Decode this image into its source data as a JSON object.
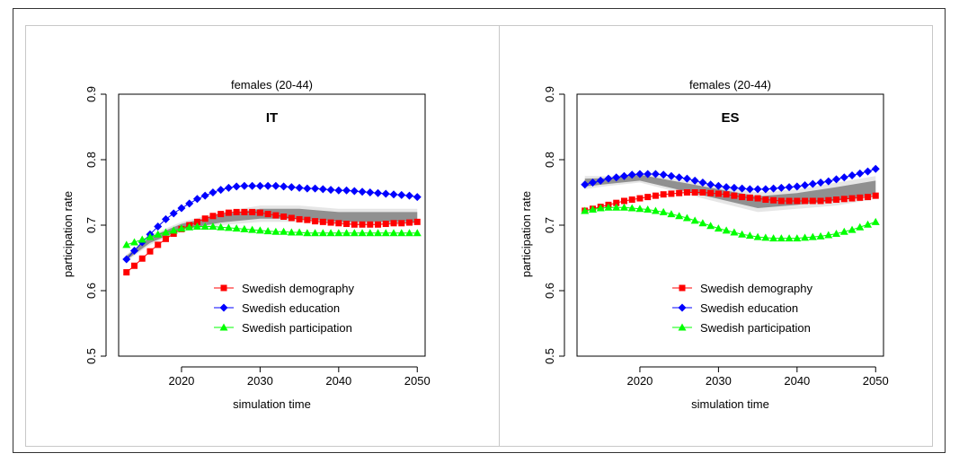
{
  "chart_data": [
    {
      "type": "line",
      "title": "females (20-44)",
      "annotation": "IT",
      "xlabel": "simulation time",
      "ylabel": "participation rate",
      "xlim": [
        2012,
        2051
      ],
      "ylim": [
        0.5,
        0.9
      ],
      "x_ticks": [
        2020,
        2030,
        2040,
        2050
      ],
      "y_ticks": [
        0.5,
        0.6,
        0.7,
        0.8,
        0.9
      ],
      "legend_position": "bottom-center",
      "band": {
        "x": [
          2013,
          2016,
          2020,
          2025,
          2030,
          2035,
          2040,
          2045,
          2050
        ],
        "low": [
          0.645,
          0.67,
          0.69,
          0.7,
          0.705,
          0.705,
          0.7,
          0.7,
          0.7
        ],
        "high": [
          0.655,
          0.685,
          0.705,
          0.72,
          0.73,
          0.73,
          0.725,
          0.725,
          0.725
        ]
      },
      "series": [
        {
          "name": "Swedish demography",
          "color": "#ff0000",
          "marker": "square",
          "x": [
            2013,
            2014,
            2015,
            2016,
            2017,
            2018,
            2019,
            2020,
            2021,
            2022,
            2023,
            2024,
            2025,
            2026,
            2027,
            2028,
            2029,
            2030,
            2031,
            2032,
            2033,
            2034,
            2035,
            2036,
            2037,
            2038,
            2039,
            2040,
            2041,
            2042,
            2043,
            2044,
            2045,
            2046,
            2047,
            2048,
            2049,
            2050
          ],
          "values": [
            0.628,
            0.638,
            0.649,
            0.66,
            0.67,
            0.679,
            0.687,
            0.694,
            0.7,
            0.705,
            0.71,
            0.714,
            0.717,
            0.719,
            0.72,
            0.72,
            0.72,
            0.719,
            0.717,
            0.715,
            0.713,
            0.711,
            0.709,
            0.708,
            0.706,
            0.705,
            0.704,
            0.703,
            0.702,
            0.701,
            0.701,
            0.701,
            0.701,
            0.702,
            0.703,
            0.703,
            0.704,
            0.705
          ]
        },
        {
          "name": "Swedish education",
          "color": "#0000ff",
          "marker": "diamond",
          "x": [
            2013,
            2014,
            2015,
            2016,
            2017,
            2018,
            2019,
            2020,
            2021,
            2022,
            2023,
            2024,
            2025,
            2026,
            2027,
            2028,
            2029,
            2030,
            2031,
            2032,
            2033,
            2034,
            2035,
            2036,
            2037,
            2038,
            2039,
            2040,
            2041,
            2042,
            2043,
            2044,
            2045,
            2046,
            2047,
            2048,
            2049,
            2050
          ],
          "values": [
            0.648,
            0.661,
            0.674,
            0.686,
            0.698,
            0.709,
            0.718,
            0.726,
            0.733,
            0.74,
            0.745,
            0.75,
            0.754,
            0.757,
            0.759,
            0.76,
            0.76,
            0.76,
            0.76,
            0.76,
            0.759,
            0.758,
            0.757,
            0.756,
            0.756,
            0.755,
            0.754,
            0.753,
            0.753,
            0.752,
            0.751,
            0.75,
            0.749,
            0.748,
            0.747,
            0.746,
            0.745,
            0.743
          ]
        },
        {
          "name": "Swedish participation",
          "color": "#00ff00",
          "marker": "triangle",
          "x": [
            2013,
            2014,
            2015,
            2016,
            2017,
            2018,
            2019,
            2020,
            2021,
            2022,
            2023,
            2024,
            2025,
            2026,
            2027,
            2028,
            2029,
            2030,
            2031,
            2032,
            2033,
            2034,
            2035,
            2036,
            2037,
            2038,
            2039,
            2040,
            2041,
            2042,
            2043,
            2044,
            2045,
            2046,
            2047,
            2048,
            2049,
            2050
          ],
          "values": [
            0.67,
            0.674,
            0.678,
            0.682,
            0.686,
            0.689,
            0.692,
            0.695,
            0.697,
            0.698,
            0.698,
            0.698,
            0.697,
            0.696,
            0.695,
            0.694,
            0.693,
            0.692,
            0.691,
            0.69,
            0.69,
            0.689,
            0.689,
            0.688,
            0.688,
            0.688,
            0.688,
            0.688,
            0.688,
            0.688,
            0.688,
            0.688,
            0.688,
            0.688,
            0.688,
            0.688,
            0.688,
            0.688
          ]
        }
      ]
    },
    {
      "type": "line",
      "title": "females (20-44)",
      "annotation": "ES",
      "xlabel": "simulation time",
      "ylabel": "participation rate",
      "xlim": [
        2012,
        2051
      ],
      "ylim": [
        0.5,
        0.9
      ],
      "x_ticks": [
        2020,
        2030,
        2040,
        2050
      ],
      "y_ticks": [
        0.5,
        0.6,
        0.7,
        0.8,
        0.9
      ],
      "legend_position": "bottom-center",
      "band": {
        "x": [
          2013,
          2016,
          2020,
          2025,
          2030,
          2035,
          2040,
          2045,
          2050
        ],
        "low": [
          0.755,
          0.76,
          0.765,
          0.75,
          0.735,
          0.72,
          0.725,
          0.73,
          0.74
        ],
        "high": [
          0.775,
          0.775,
          0.78,
          0.77,
          0.76,
          0.75,
          0.755,
          0.765,
          0.775
        ]
      },
      "series": [
        {
          "name": "Swedish demography",
          "color": "#ff0000",
          "marker": "square",
          "x": [
            2013,
            2014,
            2015,
            2016,
            2017,
            2018,
            2019,
            2020,
            2021,
            2022,
            2023,
            2024,
            2025,
            2026,
            2027,
            2028,
            2029,
            2030,
            2031,
            2032,
            2033,
            2034,
            2035,
            2036,
            2037,
            2038,
            2039,
            2040,
            2041,
            2042,
            2043,
            2044,
            2045,
            2046,
            2047,
            2048,
            2049,
            2050
          ],
          "values": [
            0.722,
            0.725,
            0.728,
            0.731,
            0.734,
            0.737,
            0.739,
            0.741,
            0.743,
            0.745,
            0.747,
            0.748,
            0.749,
            0.75,
            0.75,
            0.75,
            0.749,
            0.748,
            0.747,
            0.745,
            0.743,
            0.742,
            0.741,
            0.739,
            0.738,
            0.737,
            0.737,
            0.737,
            0.737,
            0.737,
            0.737,
            0.738,
            0.739,
            0.74,
            0.741,
            0.742,
            0.743,
            0.745
          ]
        },
        {
          "name": "Swedish education",
          "color": "#0000ff",
          "marker": "diamond",
          "x": [
            2013,
            2014,
            2015,
            2016,
            2017,
            2018,
            2019,
            2020,
            2021,
            2022,
            2023,
            2024,
            2025,
            2026,
            2027,
            2028,
            2029,
            2030,
            2031,
            2032,
            2033,
            2034,
            2035,
            2036,
            2037,
            2038,
            2039,
            2040,
            2041,
            2042,
            2043,
            2044,
            2045,
            2046,
            2047,
            2048,
            2049,
            2050
          ],
          "values": [
            0.762,
            0.765,
            0.768,
            0.771,
            0.773,
            0.775,
            0.777,
            0.778,
            0.778,
            0.778,
            0.777,
            0.775,
            0.773,
            0.771,
            0.768,
            0.765,
            0.762,
            0.76,
            0.758,
            0.757,
            0.756,
            0.755,
            0.755,
            0.755,
            0.756,
            0.757,
            0.758,
            0.759,
            0.761,
            0.763,
            0.765,
            0.767,
            0.77,
            0.773,
            0.776,
            0.779,
            0.782,
            0.786
          ]
        },
        {
          "name": "Swedish participation",
          "color": "#00ff00",
          "marker": "triangle",
          "x": [
            2013,
            2014,
            2015,
            2016,
            2017,
            2018,
            2019,
            2020,
            2021,
            2022,
            2023,
            2024,
            2025,
            2026,
            2027,
            2028,
            2029,
            2030,
            2031,
            2032,
            2033,
            2034,
            2035,
            2036,
            2037,
            2038,
            2039,
            2040,
            2041,
            2042,
            2043,
            2044,
            2045,
            2046,
            2047,
            2048,
            2049,
            2050
          ],
          "values": [
            0.722,
            0.724,
            0.726,
            0.727,
            0.727,
            0.727,
            0.726,
            0.725,
            0.724,
            0.722,
            0.72,
            0.717,
            0.714,
            0.711,
            0.707,
            0.703,
            0.699,
            0.695,
            0.692,
            0.689,
            0.686,
            0.684,
            0.682,
            0.681,
            0.68,
            0.68,
            0.68,
            0.68,
            0.681,
            0.682,
            0.683,
            0.685,
            0.687,
            0.69,
            0.693,
            0.697,
            0.701,
            0.705
          ]
        }
      ]
    }
  ]
}
